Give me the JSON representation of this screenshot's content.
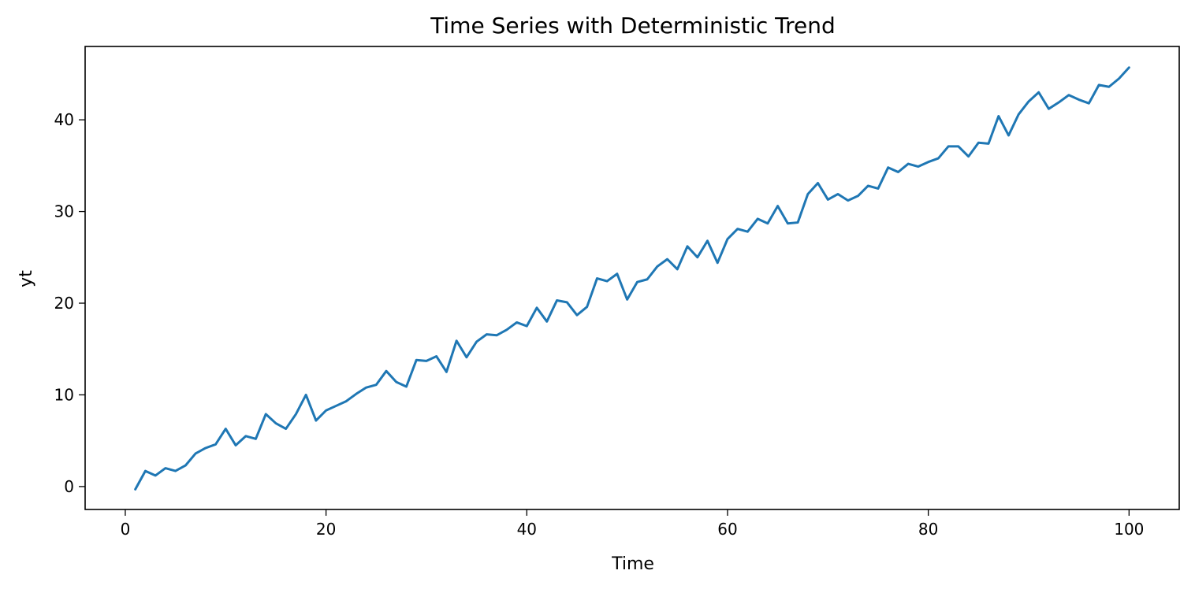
{
  "chart_data": {
    "type": "line",
    "title": "Time Series with Deterministic Trend",
    "xlabel": "Time",
    "ylabel": "yt",
    "xlim": [
      -4,
      105
    ],
    "ylim": [
      -2.5,
      48
    ],
    "xticks": [
      0,
      20,
      40,
      60,
      80,
      100
    ],
    "yticks": [
      0,
      10,
      20,
      30,
      40
    ],
    "grid": false,
    "legend": "none",
    "series": [
      {
        "color": "#1f77b4",
        "x": [
          1,
          2,
          3,
          4,
          5,
          6,
          7,
          8,
          9,
          10,
          11,
          12,
          13,
          14,
          15,
          16,
          17,
          18,
          19,
          20,
          21,
          22,
          23,
          24,
          25,
          26,
          27,
          28,
          29,
          30,
          31,
          32,
          33,
          34,
          35,
          36,
          37,
          38,
          39,
          40,
          41,
          42,
          43,
          44,
          45,
          46,
          47,
          48,
          49,
          50,
          51,
          52,
          53,
          54,
          55,
          56,
          57,
          58,
          59,
          60,
          61,
          62,
          63,
          64,
          65,
          66,
          67,
          68,
          69,
          70,
          71,
          72,
          73,
          74,
          75,
          76,
          77,
          78,
          79,
          80,
          81,
          82,
          83,
          84,
          85,
          86,
          87,
          88,
          89,
          90,
          91,
          92,
          93,
          94,
          95,
          96,
          97,
          98,
          99,
          100
        ],
        "y": [
          -0.3,
          1.7,
          1.2,
          2.0,
          1.7,
          2.3,
          3.6,
          4.2,
          4.6,
          6.3,
          4.5,
          5.5,
          5.2,
          7.9,
          6.9,
          6.3,
          7.9,
          10.0,
          7.2,
          8.3,
          8.8,
          9.3,
          10.1,
          10.8,
          11.1,
          12.6,
          11.4,
          10.9,
          13.8,
          13.7,
          14.2,
          12.5,
          15.9,
          14.1,
          15.8,
          16.6,
          16.5,
          17.1,
          17.9,
          17.5,
          19.5,
          18.0,
          20.3,
          20.1,
          18.7,
          19.6,
          22.7,
          22.4,
          23.2,
          20.4,
          22.3,
          22.6,
          24.0,
          24.8,
          23.7,
          26.2,
          25.0,
          26.8,
          24.4,
          27.0,
          28.1,
          27.8,
          29.2,
          28.7,
          30.6,
          28.7,
          28.8,
          31.9,
          33.1,
          31.3,
          31.9,
          31.2,
          31.7,
          32.8,
          32.5,
          34.8,
          34.3,
          35.2,
          34.9,
          35.4,
          35.8,
          37.1,
          37.1,
          36.0,
          37.5,
          37.4,
          40.4,
          38.3,
          40.6,
          42.0,
          43.0,
          41.2,
          41.9,
          42.7,
          42.2,
          41.8,
          43.8,
          43.6,
          44.5,
          45.7
        ]
      }
    ]
  }
}
